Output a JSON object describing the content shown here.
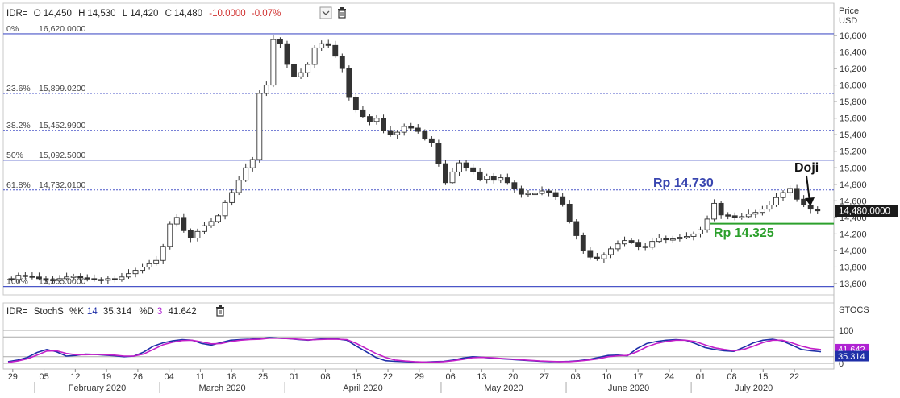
{
  "upper_header": {
    "symbol": "IDR=",
    "o_label": "O",
    "o_value": "14,450",
    "h_label": "H",
    "h_value": "14,530",
    "l_label": "L",
    "l_value": "14,420",
    "c_label": "C",
    "c_value": "14,480",
    "change": "-10.0000",
    "change_pct": "-0.07%",
    "dropdown_icon": "chevron-down-icon",
    "delete_icon": "trash-icon"
  },
  "axis_title": [
    "Price",
    "USD"
  ],
  "last_price_label": "14,480.0000",
  "annotations": {
    "resistance": "Rp 14.730",
    "support": "Rp 14.325",
    "doji": "Doji"
  },
  "lower_header": {
    "symbol": "IDR=",
    "indicator": "StochS",
    "k_label": "%K",
    "k_period": "14",
    "k_value": "35.314",
    "d_label": "%D",
    "d_period": "3",
    "d_value": "41.642",
    "delete_icon": "trash-icon"
  },
  "stoch_axis_title": "STOCS",
  "colors": {
    "k_line": "#1f2fa8",
    "d_line": "#c21fc9",
    "k_tag": "#1f2fa8",
    "d_tag": "#b023d3",
    "fib": "#4a56c8",
    "support": "#2ca02c",
    "resistance_text": "#3946b0"
  },
  "chart_data": [
    {
      "type": "candlestick",
      "title": "",
      "ylabel": "Price USD",
      "ylim": [
        13600,
        16700
      ],
      "yticks": [
        13600,
        13800,
        14000,
        14200,
        14400,
        14600,
        14800,
        15000,
        15200,
        15400,
        15600,
        15800,
        16000,
        16200,
        16400,
        16600
      ],
      "ytick_labels": [
        "13,600",
        "13,800",
        "14,000",
        "14,200",
        "14,400",
        "14,600",
        "14,800",
        "15,000",
        "15,200",
        "15,400",
        "15,600",
        "15,800",
        "16,000",
        "16,200",
        "16,400",
        "16,600"
      ],
      "grid": false,
      "date_range": [
        "2020-01-29",
        "2020-07-28"
      ],
      "x_tick_labels": [
        "29",
        "05",
        "12",
        "19",
        "26",
        "04",
        "11",
        "18",
        "25",
        "01",
        "08",
        "15",
        "22",
        "29",
        "06",
        "13",
        "20",
        "27",
        "03",
        "10",
        "17",
        "24",
        "01",
        "08",
        "15",
        "22"
      ],
      "month_labels": [
        "February 2020",
        "March 2020",
        "April 2020",
        "May 2020",
        "June 2020",
        "July 2020"
      ],
      "fibonacci": [
        {
          "label": "0%",
          "price_label": "16,620.0000",
          "value": 16620.0
        },
        {
          "label": "23.6%",
          "price_label": "15,899.0200",
          "value": 15899.02
        },
        {
          "label": "38.2%",
          "price_label": "15,452.9900",
          "value": 15452.99
        },
        {
          "label": "50%",
          "price_label": "15,092.5000",
          "value": 15092.5
        },
        {
          "label": "61.8%",
          "price_label": "14,732.0100",
          "value": 14732.01
        },
        {
          "label": "100%",
          "price_label": "13,565.0000",
          "value": 13565.0
        }
      ],
      "support_level": 14325,
      "last_close": 14480,
      "closes": [
        13650,
        13700,
        13690,
        13680,
        13660,
        13640,
        13650,
        13660,
        13680,
        13690,
        13670,
        13660,
        13650,
        13640,
        13660,
        13650,
        13680,
        13720,
        13760,
        13800,
        13840,
        13880,
        14050,
        14320,
        14400,
        14240,
        14150,
        14230,
        14300,
        14350,
        14420,
        14580,
        14700,
        14850,
        15000,
        15100,
        15900,
        16000,
        16550,
        16500,
        16250,
        16100,
        16150,
        16250,
        16450,
        16500,
        16480,
        16350,
        16200,
        15850,
        15700,
        15620,
        15560,
        15600,
        15450,
        15400,
        15430,
        15500,
        15480,
        15440,
        15350,
        15300,
        15050,
        14820,
        14950,
        15060,
        15000,
        14950,
        14860,
        14900,
        14850,
        14880,
        14820,
        14750,
        14680,
        14690,
        14690,
        14720,
        14700,
        14650,
        14560,
        14350,
        14180,
        14000,
        13920,
        13900,
        13950,
        14020,
        14080,
        14120,
        14100,
        14050,
        14040,
        14110,
        14150,
        14130,
        14140,
        14160,
        14170,
        14200,
        14250,
        14380,
        14570,
        14430,
        14420,
        14400,
        14410,
        14440,
        14460,
        14500,
        14550,
        14640,
        14700,
        14750,
        14620,
        14550,
        14500,
        14480
      ],
      "doji_index": 117
    },
    {
      "type": "line",
      "title": "",
      "ylim": [
        0,
        100
      ],
      "yticks": [
        0,
        50,
        100
      ],
      "ytick_labels": [
        "0",
        "50",
        "100"
      ],
      "series": [
        {
          "name": "%K",
          "values": [
            5,
            10,
            18,
            33,
            42,
            35,
            22,
            24,
            28,
            27,
            25,
            23,
            20,
            22,
            34,
            52,
            62,
            68,
            72,
            70,
            60,
            55,
            63,
            70,
            72,
            73,
            75,
            78,
            76,
            75,
            72,
            70,
            73,
            75,
            74,
            70,
            52,
            35,
            18,
            8,
            6,
            5,
            4,
            4,
            5,
            6,
            10,
            16,
            20,
            18,
            16,
            14,
            12,
            10,
            8,
            6,
            5,
            5,
            6,
            8,
            12,
            18,
            24,
            25,
            23,
            45,
            60,
            66,
            70,
            72,
            70,
            60,
            48,
            42,
            38,
            36,
            48,
            62,
            70,
            73,
            68,
            55,
            42,
            38,
            35
          ]
        },
        {
          "name": "%D",
          "values": [
            3,
            7,
            14,
            25,
            37,
            38,
            30,
            26,
            26,
            27,
            26,
            25,
            22,
            22,
            28,
            42,
            56,
            64,
            69,
            70,
            65,
            59,
            60,
            66,
            70,
            72,
            73,
            76,
            76,
            75,
            73,
            71,
            72,
            73,
            73,
            72,
            60,
            45,
            30,
            18,
            10,
            7,
            5,
            4,
            4,
            5,
            8,
            12,
            17,
            18,
            17,
            15,
            13,
            11,
            9,
            7,
            6,
            5,
            5,
            7,
            10,
            14,
            20,
            23,
            24,
            35,
            50,
            60,
            66,
            70,
            70,
            66,
            56,
            47,
            42,
            38,
            42,
            52,
            63,
            70,
            70,
            62,
            52,
            45,
            41.642
          ]
        }
      ],
      "last_values": {
        "%K": 35.314,
        "%D": 41.642
      }
    }
  ]
}
